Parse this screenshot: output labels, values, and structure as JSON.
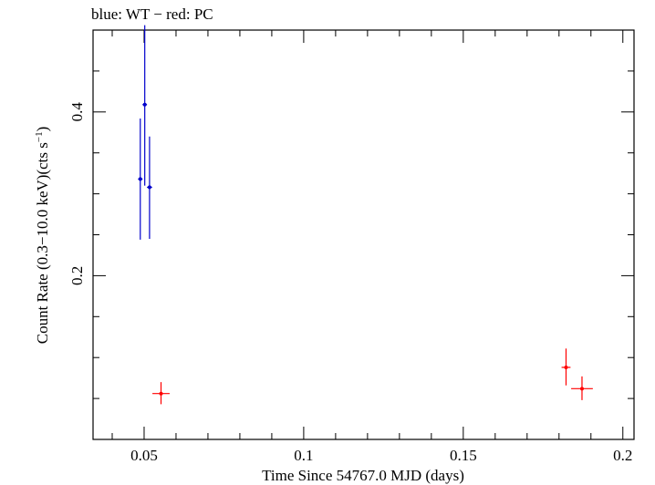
{
  "chart_data": {
    "type": "scatter",
    "title": "blue: WT − red: PC",
    "xlabel": "Time Since 54767.0 MJD (days)",
    "ylabel_main": "Count Rate (0.3−10.0 keV)(cts s",
    "ylabel_sup": "−1",
    "ylabel_end": ")",
    "xlim": [
      0.034,
      0.2035
    ],
    "ylim": [
      0.0,
      0.5
    ],
    "x_ticks": [
      0.05,
      0.1,
      0.15,
      0.2
    ],
    "x_tick_labels": [
      "0.05",
      "0.1",
      "0.15",
      "0.2"
    ],
    "y_ticks": [
      0.2,
      0.4
    ],
    "y_tick_labels": [
      "0.2",
      "0.4"
    ],
    "grid": false,
    "series": [
      {
        "color": "#0000cc",
        "points": [
          {
            "x": 0.0488,
            "y": 0.318,
            "xerr": 0.0007,
            "ylo": 0.244,
            "yhi": 0.392
          },
          {
            "x": 0.0502,
            "y": 0.409,
            "xerr": 0.0007,
            "ylo": 0.31,
            "yhi": 0.506
          },
          {
            "x": 0.0517,
            "y": 0.308,
            "xerr": 0.0008,
            "ylo": 0.245,
            "yhi": 0.37
          }
        ]
      },
      {
        "color": "#ff0000",
        "points": [
          {
            "x": 0.0553,
            "y": 0.056,
            "xerr": 0.0027,
            "ylo": 0.043,
            "yhi": 0.07
          },
          {
            "x": 0.1822,
            "y": 0.088,
            "xerr": 0.0014,
            "ylo": 0.066,
            "yhi": 0.111
          },
          {
            "x": 0.1872,
            "y": 0.062,
            "xerr": 0.0034,
            "ylo": 0.048,
            "yhi": 0.077
          }
        ]
      }
    ]
  }
}
